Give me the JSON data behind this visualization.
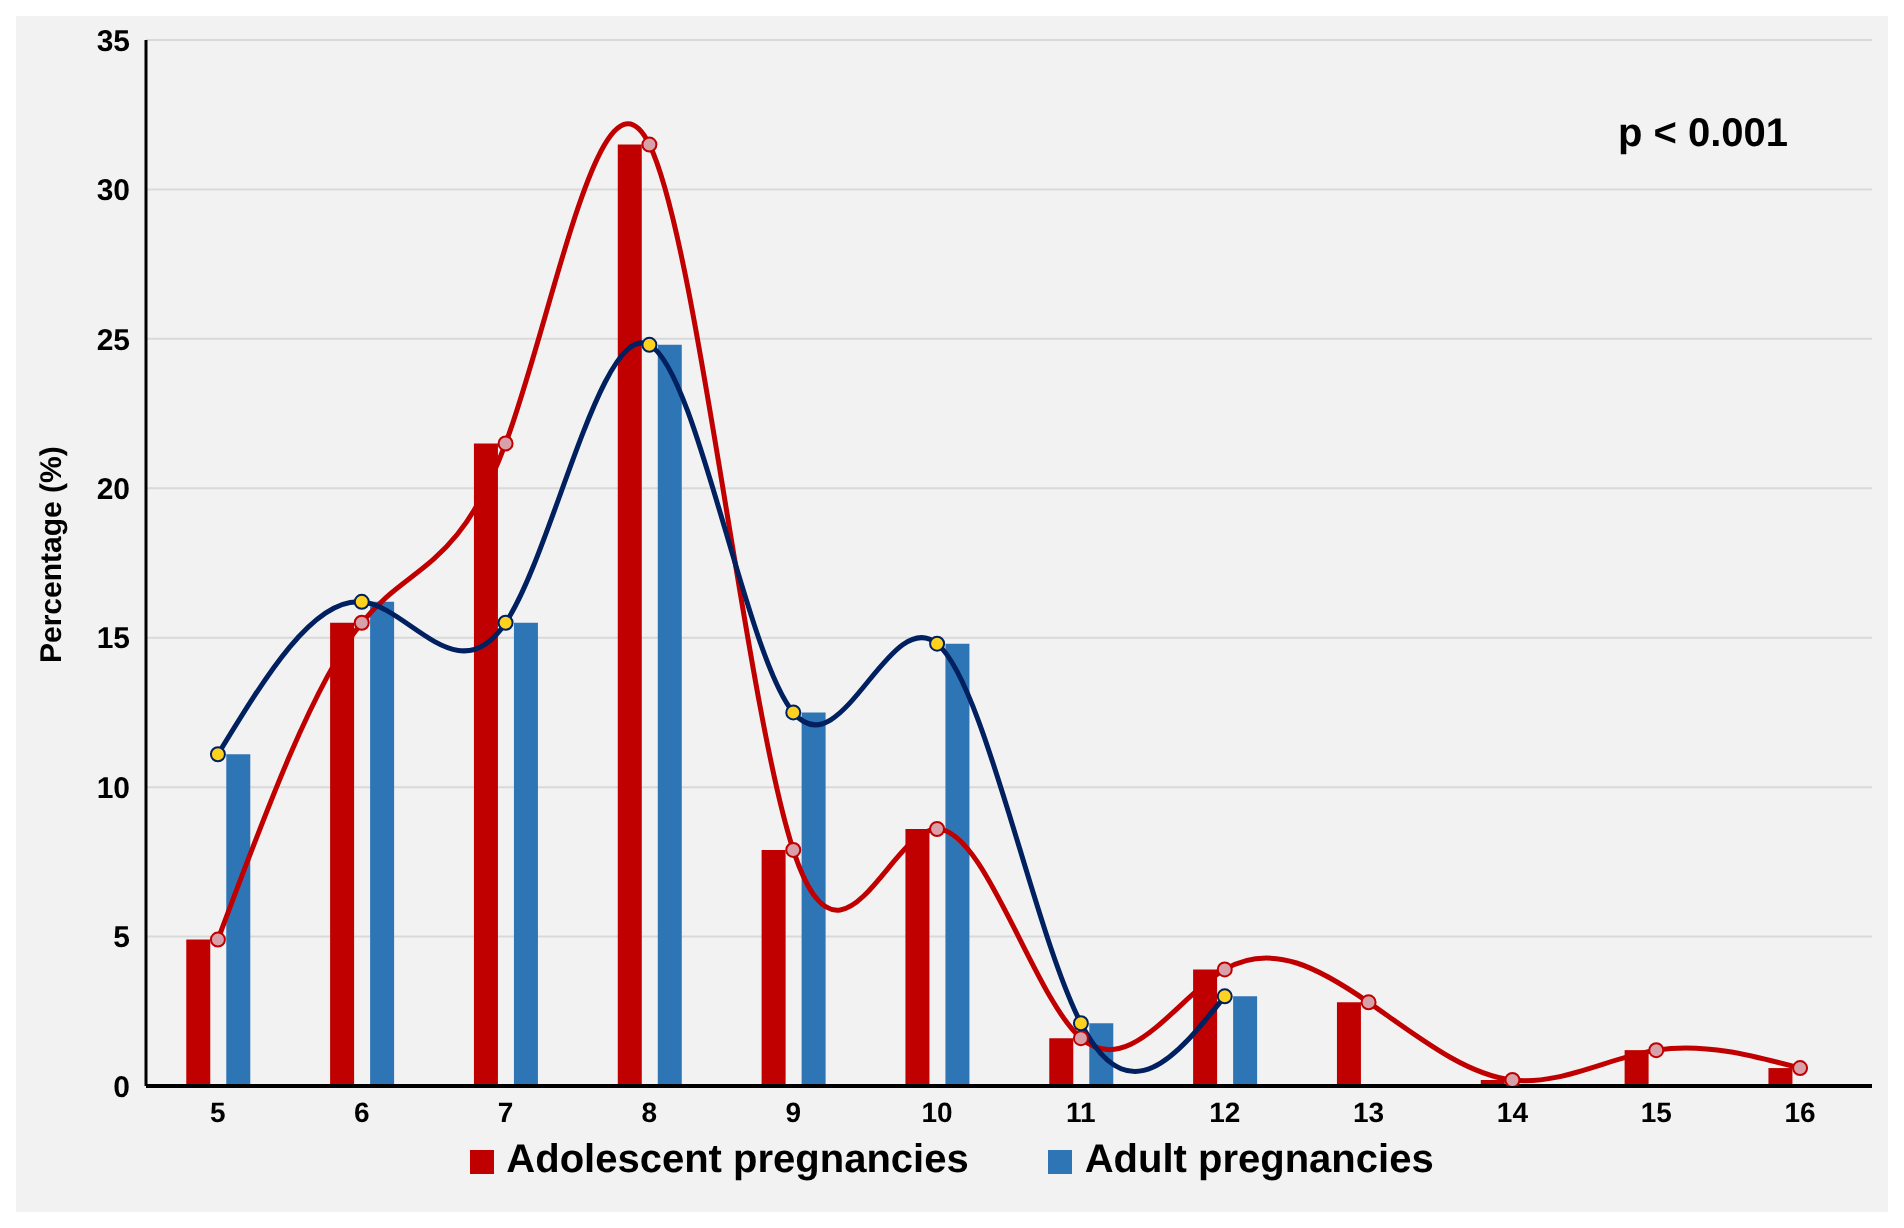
{
  "chart_data": {
    "type": "bar",
    "ylabel": "Percentage (%)",
    "categories": [
      "5",
      "6",
      "7",
      "8",
      "9",
      "10",
      "11",
      "12",
      "13",
      "14",
      "15",
      "16"
    ],
    "series": [
      {
        "name": "Adolescent pregnancies",
        "color": "#c00000",
        "values": [
          4.9,
          15.5,
          21.5,
          31.5,
          7.9,
          8.6,
          1.6,
          3.9,
          2.8,
          0.2,
          1.2,
          0.6
        ]
      },
      {
        "name": "Adult pregnancies",
        "color": "#2e75b6",
        "values": [
          11.1,
          16.2,
          15.5,
          24.8,
          12.5,
          14.8,
          2.1,
          3.0,
          null,
          null,
          null,
          null
        ]
      },
      {
        "type": "line",
        "color": "#c00000",
        "values": [
          4.9,
          15.5,
          21.5,
          31.5,
          7.9,
          8.6,
          1.6,
          3.9,
          2.8,
          0.2,
          1.2,
          0.6
        ]
      },
      {
        "type": "line",
        "color": "#002060",
        "values": [
          11.1,
          16.2,
          15.5,
          24.8,
          12.5,
          14.8,
          2.1,
          3.0,
          null,
          null,
          null,
          null
        ]
      }
    ],
    "ylim": [
      0,
      35
    ],
    "yticks": [
      0,
      5,
      10,
      15,
      20,
      25,
      30,
      35
    ],
    "grid": "y",
    "legend": "bottom",
    "marker": "circle",
    "line_style": "solid",
    "annotations": [
      "p < 0.001"
    ]
  }
}
